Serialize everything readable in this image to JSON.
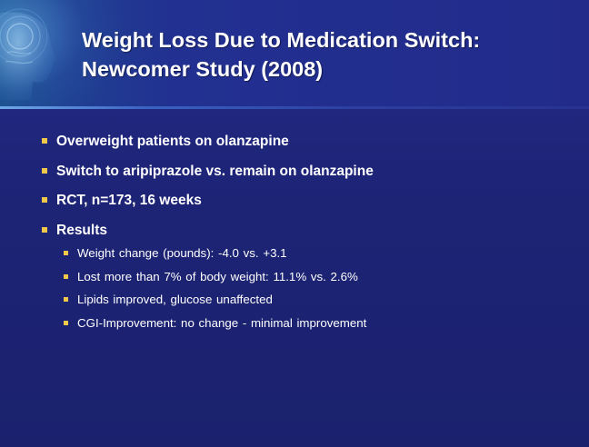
{
  "slide": {
    "title_line1": "Weight Loss Due to Medication Switch:",
    "title_line2": "Newcomer Study (2008)",
    "bullets": [
      "Overweight patients on olanzapine",
      "Switch to aripiprazole vs. remain on olanzapine",
      "RCT, n=173, 16 weeks",
      "Results"
    ],
    "results": [
      "Weight change (pounds):  -4.0 vs. +3.1",
      "Lost more than 7% of body weight:  11.1% vs. 2.6%",
      "Lipids improved, glucose unaffected",
      "CGI-Improvement:  no change - minimal improvement"
    ]
  },
  "colors": {
    "background": "#1e2472",
    "header": "#222b8a",
    "bullet": "#f0c84a",
    "text": "#ffffff"
  }
}
